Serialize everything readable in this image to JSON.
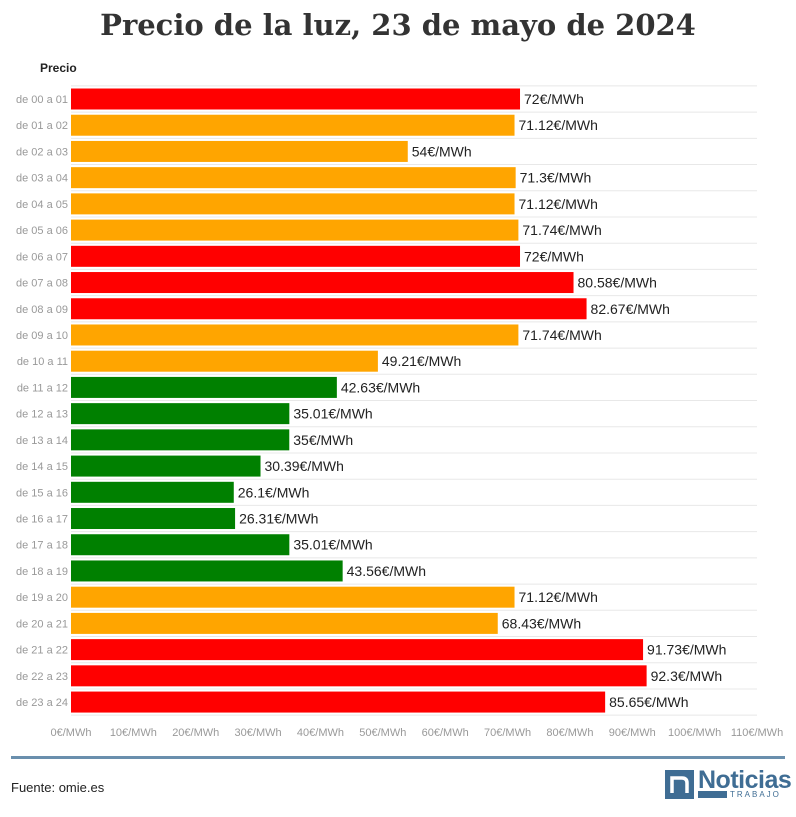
{
  "chart_data": {
    "type": "bar",
    "orientation": "horizontal",
    "title": "Precio de la luz, 23 de mayo de 2024",
    "series_label": "Precio",
    "categories": [
      "de 00 a 01",
      "de 01 a 02",
      "de 02 a 03",
      "de 03 a 04",
      "de 04 a 05",
      "de 05 a 06",
      "de 06 a 07",
      "de 07 a 08",
      "de 08 a 09",
      "de 09 a 10",
      "de 10 a 11",
      "de 11 a 12",
      "de 12 a 13",
      "de 13 a 14",
      "de 14 a 15",
      "de 15 a 16",
      "de 16 a 17",
      "de 17 a 18",
      "de 18 a 19",
      "de 19 a 20",
      "de 20 a 21",
      "de 21 a 22",
      "de 22 a 23",
      "de 23 a 24"
    ],
    "values": [
      72,
      71.12,
      54,
      71.3,
      71.12,
      71.74,
      72,
      80.58,
      82.67,
      71.74,
      49.21,
      42.63,
      35.01,
      35,
      30.39,
      26.1,
      26.31,
      35.01,
      43.56,
      71.12,
      68.43,
      91.73,
      92.3,
      85.65
    ],
    "value_labels": [
      "72€/MWh",
      "71.12€/MWh",
      "54€/MWh",
      "71.3€/MWh",
      "71.12€/MWh",
      "71.74€/MWh",
      "72€/MWh",
      "80.58€/MWh",
      "82.67€/MWh",
      "71.74€/MWh",
      "49.21€/MWh",
      "42.63€/MWh",
      "35.01€/MWh",
      "35€/MWh",
      "30.39€/MWh",
      "26.1€/MWh",
      "26.31€/MWh",
      "35.01€/MWh",
      "43.56€/MWh",
      "71.12€/MWh",
      "68.43€/MWh",
      "91.73€/MWh",
      "92.3€/MWh",
      "85.65€/MWh"
    ],
    "bar_colors": [
      "#ff0000",
      "#ffa500",
      "#ffa500",
      "#ffa500",
      "#ffa500",
      "#ffa500",
      "#ff0000",
      "#ff0000",
      "#ff0000",
      "#ffa500",
      "#ffa500",
      "#008000",
      "#008000",
      "#008000",
      "#008000",
      "#008000",
      "#008000",
      "#008000",
      "#008000",
      "#ffa500",
      "#ffa500",
      "#ff0000",
      "#ff0000",
      "#ff0000"
    ],
    "xlim": [
      0,
      110
    ],
    "x_ticks": [
      0,
      10,
      20,
      30,
      40,
      50,
      60,
      70,
      80,
      90,
      100,
      110
    ],
    "x_tick_labels": [
      "0€/MWh",
      "10€/MWh",
      "20€/MWh",
      "30€/MWh",
      "40€/MWh",
      "50€/MWh",
      "60€/MWh",
      "70€/MWh",
      "80€/MWh",
      "90€/MWh",
      "100€/MWh",
      "110€/MWh"
    ],
    "grid": true
  },
  "footer": {
    "source": "Fuente: omie.es",
    "logo_icon": "n",
    "logo_name": "Noticias",
    "logo_sub": "TRABAJO"
  },
  "colors": {
    "red": "#ff0000",
    "orange": "#ffa500",
    "green": "#008000",
    "accent": "#3f6d94"
  }
}
